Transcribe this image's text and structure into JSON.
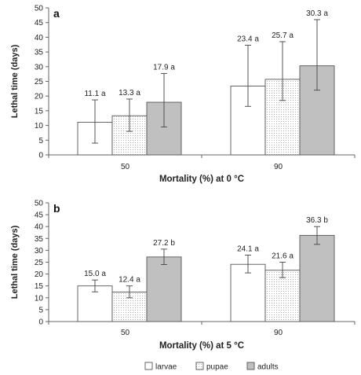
{
  "legend": [
    {
      "label": "larvae",
      "fill": "white"
    },
    {
      "label": "pupae",
      "fill": "dots"
    },
    {
      "label": "adults",
      "fill": "gray"
    }
  ],
  "colors": {
    "adults": "#c0c0c0",
    "larvae": "#ffffff",
    "pupae_dots": "#9a9a9a",
    "axis": "#666666"
  },
  "chart_data": [
    {
      "type": "bar",
      "panel_label": "a",
      "ylabel": "Lethal time (days)",
      "xlabel": "Mortality (%) at 0 °C",
      "categories": [
        "50",
        "90"
      ],
      "ylim": [
        0,
        50
      ],
      "yticks": [
        0,
        5,
        10,
        15,
        20,
        25,
        30,
        35,
        40,
        45,
        50
      ],
      "grid": false,
      "series": [
        {
          "name": "larvae",
          "values": [
            11.1,
            23.4
          ],
          "err_low": [
            4.0,
            16.5
          ],
          "err_high": [
            18.7,
            37.3
          ],
          "labels": [
            "11.1 a",
            "23.4 a"
          ]
        },
        {
          "name": "pupae",
          "values": [
            13.3,
            25.7
          ],
          "err_low": [
            8.0,
            18.5
          ],
          "err_high": [
            19.0,
            38.5
          ],
          "labels": [
            "13.3 a",
            "25.7 a"
          ]
        },
        {
          "name": "adults",
          "values": [
            17.9,
            30.3
          ],
          "err_low": [
            9.5,
            22.0
          ],
          "err_high": [
            27.7,
            46.0
          ],
          "labels": [
            "17.9 a",
            "30.3 a"
          ]
        }
      ]
    },
    {
      "type": "bar",
      "panel_label": "b",
      "ylabel": "Lethal time (days)",
      "xlabel": "Mortality (%) at 5 °C",
      "categories": [
        "50",
        "90"
      ],
      "ylim": [
        0,
        50
      ],
      "yticks": [
        0,
        5,
        10,
        15,
        20,
        25,
        30,
        35,
        40,
        45,
        50
      ],
      "grid": false,
      "series": [
        {
          "name": "larvae",
          "values": [
            15.0,
            24.1
          ],
          "err_low": [
            12.5,
            20.5
          ],
          "err_high": [
            17.5,
            28.0
          ],
          "labels": [
            "15.0 a",
            "24.1 a"
          ]
        },
        {
          "name": "pupae",
          "values": [
            12.4,
            21.6
          ],
          "err_low": [
            10.0,
            18.5
          ],
          "err_high": [
            15.0,
            25.0
          ],
          "labels": [
            "12.4 a",
            "21.6 a"
          ]
        },
        {
          "name": "adults",
          "values": [
            27.2,
            36.3
          ],
          "err_low": [
            24.0,
            32.5
          ],
          "err_high": [
            30.5,
            40.0
          ],
          "labels": [
            "27.2 b",
            "36.3 b"
          ]
        }
      ]
    }
  ]
}
